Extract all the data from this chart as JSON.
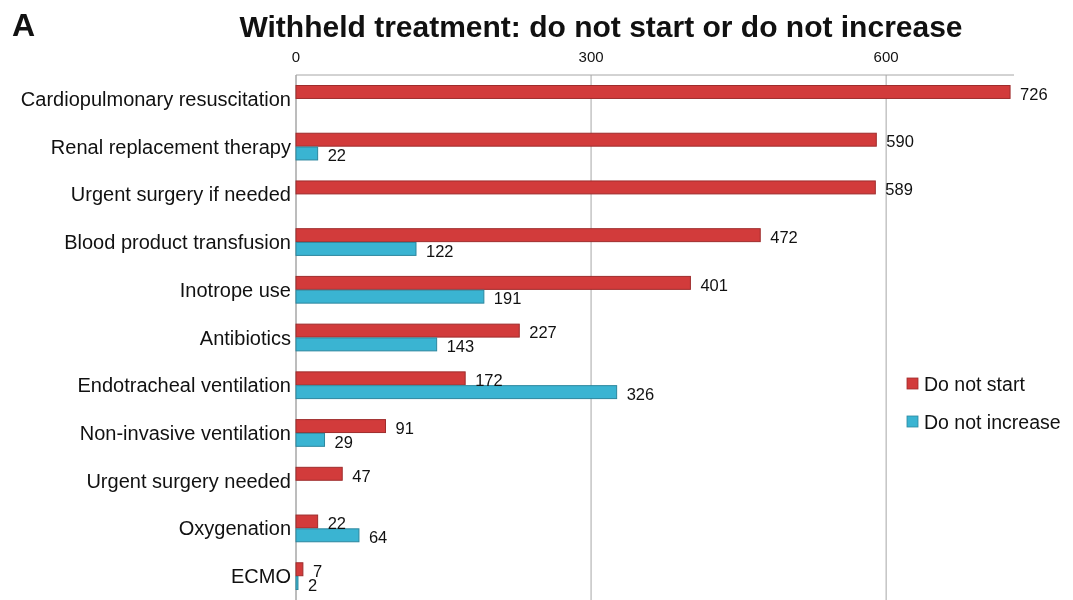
{
  "chart_data": {
    "type": "bar",
    "orientation": "horizontal",
    "title": "Withheld treatment: do not start or do not increase",
    "annotations": [
      "A"
    ],
    "categories": [
      "Cardiopulmonary resuscitation",
      "Renal replacement therapy",
      "Urgent surgery if needed",
      "Blood product transfusion",
      "Inotrope use",
      "Antibiotics",
      "Endotracheal ventilation",
      "Non-invasive ventilation",
      "Urgent surgery needed",
      "Oxygenation",
      "ECMO"
    ],
    "series": [
      {
        "name": "Do not start",
        "color": "#d23b3b",
        "values": [
          726,
          590,
          589,
          472,
          401,
          227,
          172,
          91,
          47,
          22,
          7
        ]
      },
      {
        "name": "Do not increase",
        "color": "#3ab4d2",
        "values": [
          null,
          22,
          null,
          122,
          191,
          143,
          326,
          29,
          null,
          64,
          2
        ]
      }
    ],
    "xlim": [
      0,
      730
    ],
    "xticks": [
      0,
      300,
      600
    ],
    "grid": "x",
    "legend": "right",
    "data_labels": true
  }
}
